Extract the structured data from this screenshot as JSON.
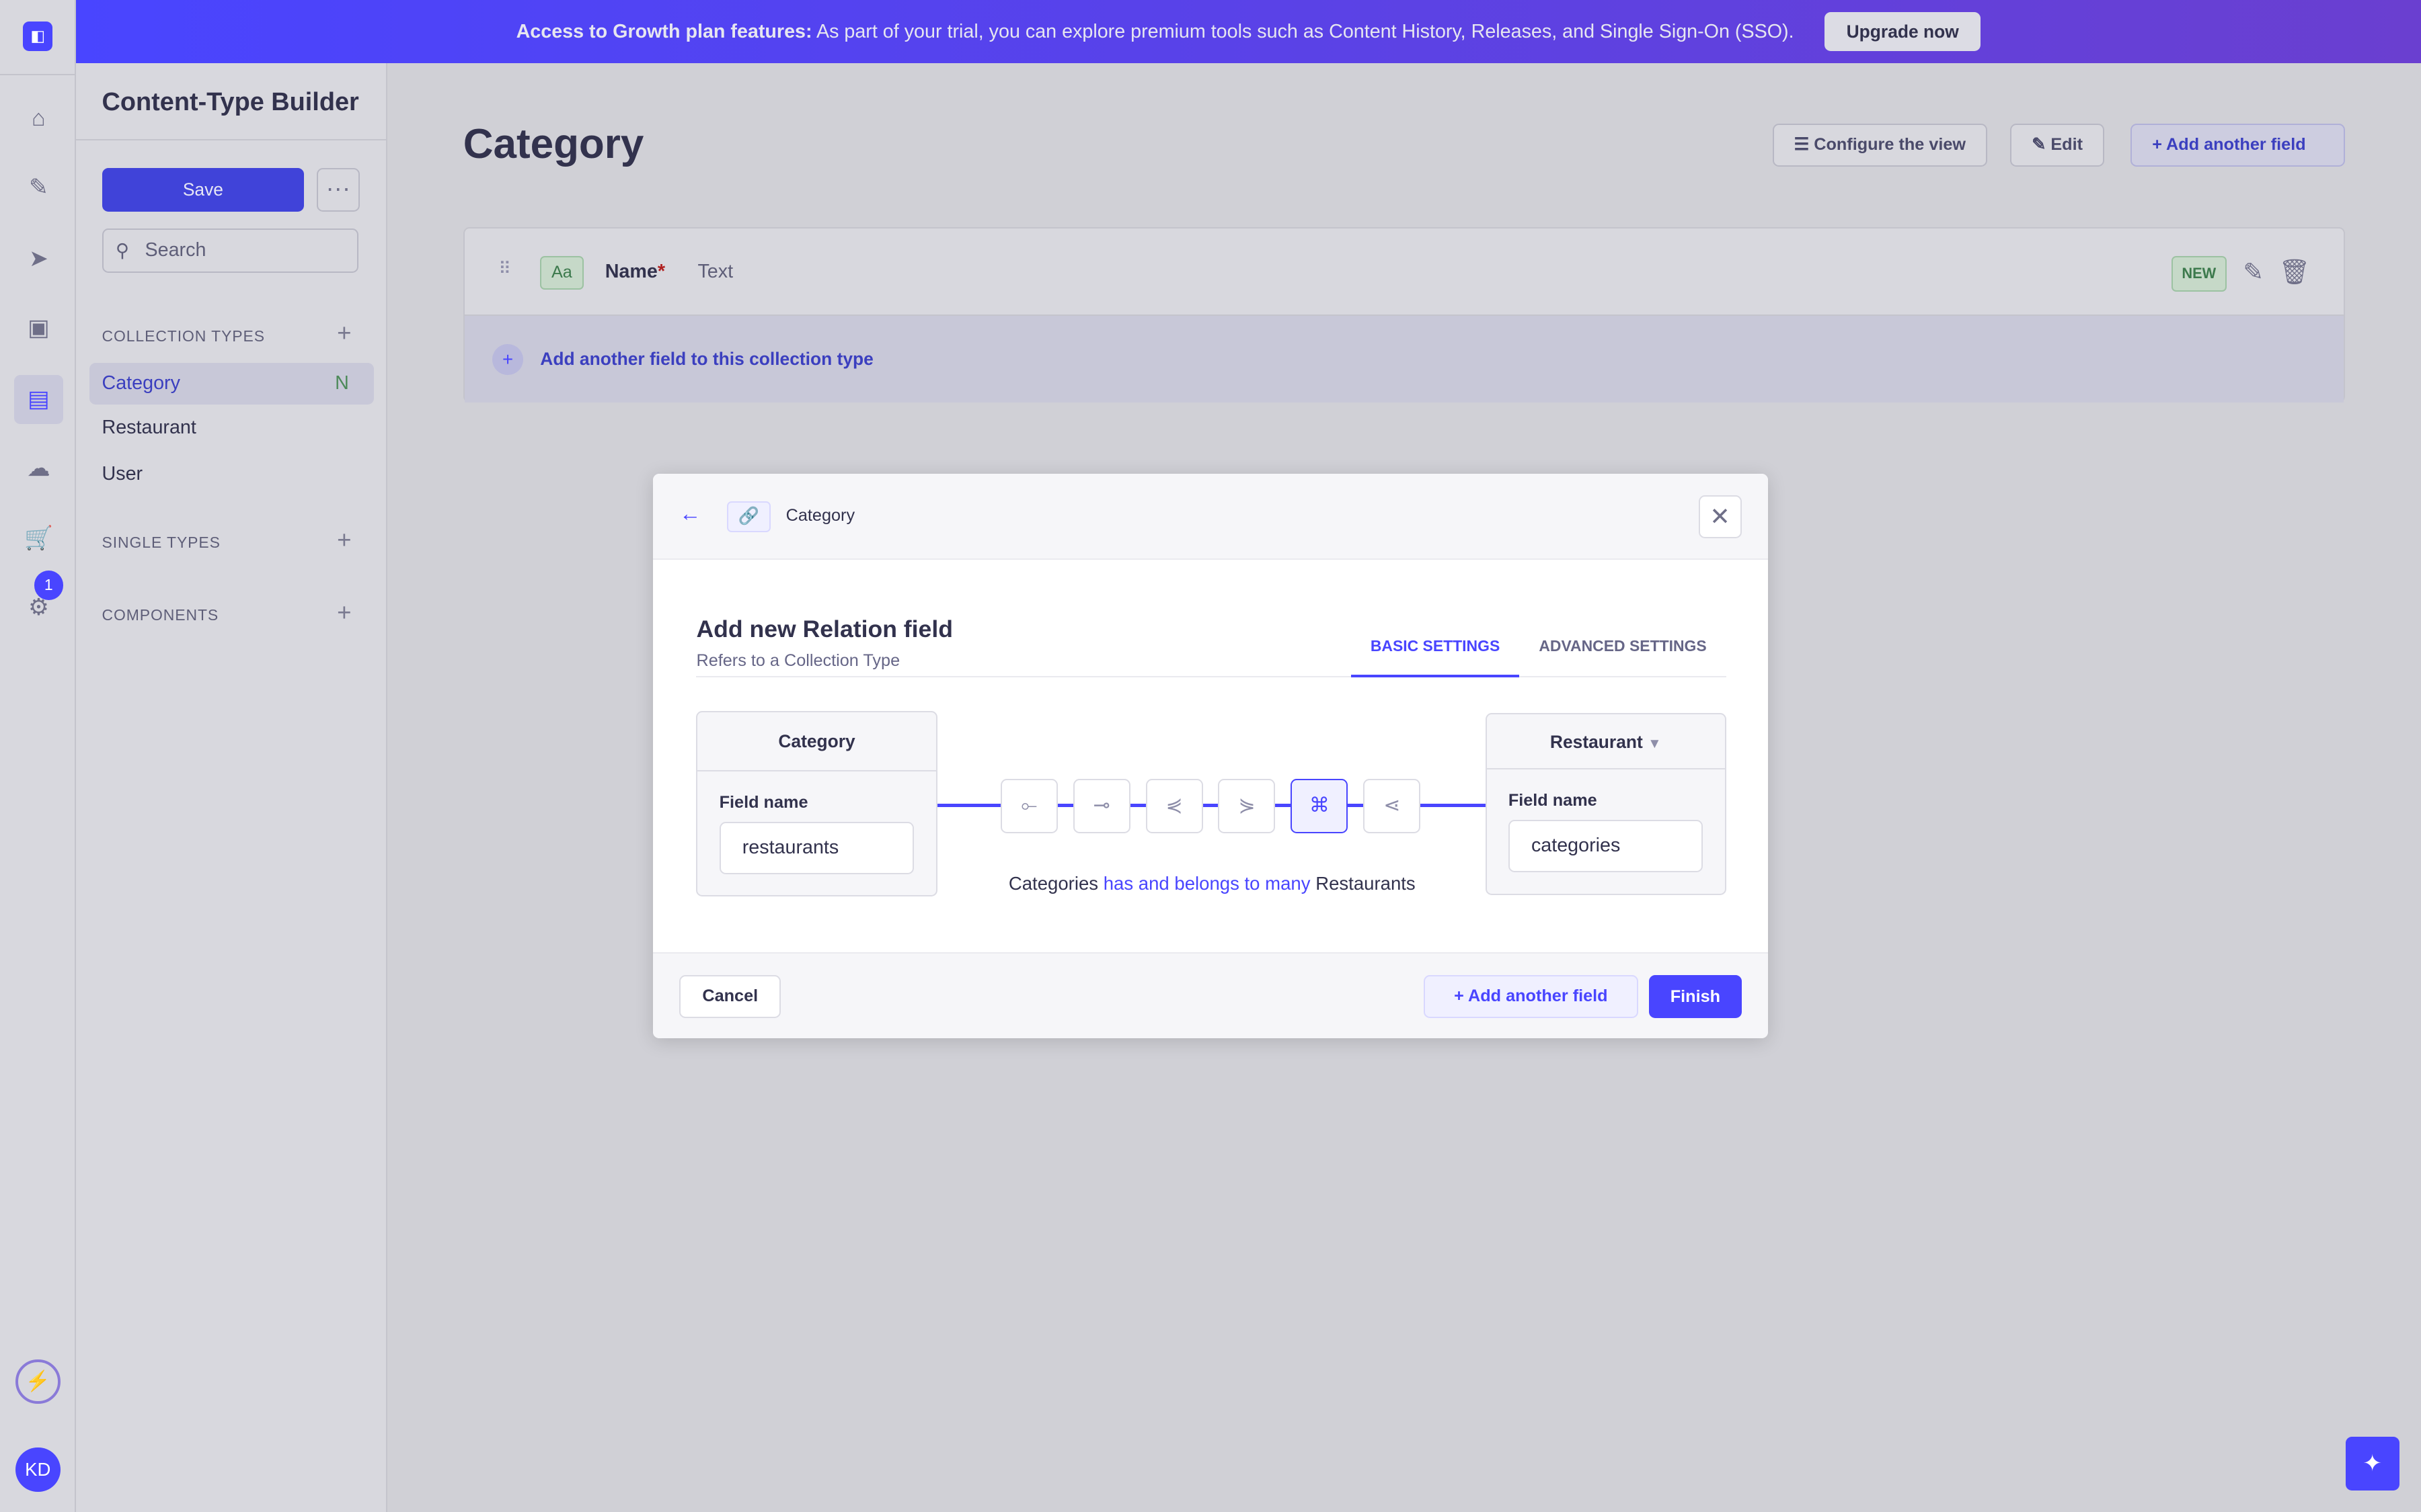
{
  "banner": {
    "bold": "Access to Growth plan features:",
    "text": "As part of your trial, you can explore premium tools such as Content History, Releases, and Single Sign-On (SSO).",
    "button": "Upgrade now"
  },
  "nav": {
    "badge": "1",
    "avatar": "KD"
  },
  "sidebar": {
    "title": "Content-Type Builder",
    "save": "Save",
    "more": "···",
    "search_placeholder": "Search",
    "collection_types": "COLLECTION TYPES",
    "single_types": "SINGLE TYPES",
    "components": "COMPONENTS",
    "items": [
      {
        "label": "Category",
        "badge": "N"
      },
      {
        "label": "Restaurant"
      },
      {
        "label": "User"
      }
    ]
  },
  "main": {
    "title": "Category",
    "configure": "Configure the view",
    "edit": "Edit",
    "add_field": "Add another field",
    "field": {
      "type_icon": "Aa",
      "name": "Name",
      "required": "*",
      "type": "Text",
      "badge": "NEW"
    },
    "add_to_collection": "Add another field to this collection type"
  },
  "modal": {
    "breadcrumb": "Category",
    "title": "Add new Relation field",
    "subtitle": "Refers to a Collection Type",
    "tabs": [
      "BASIC SETTINGS",
      "ADVANCED SETTINGS"
    ],
    "active_tab": "BASIC SETTINGS",
    "left": {
      "header": "Category",
      "label": "Field name",
      "value": "restaurants"
    },
    "right": {
      "header": "Restaurant",
      "label": "Field name",
      "value": "categories"
    },
    "relation_types": [
      "one-way",
      "one-to-one",
      "one-to-many",
      "many-to-one",
      "many-to-many",
      "many-way"
    ],
    "selected_relation": "many-to-many",
    "sentence": {
      "a": "Categories",
      "b": "has and belongs to many",
      "c": "Restaurants"
    },
    "cancel": "Cancel",
    "add_another": "Add another field",
    "finish": "Finish"
  },
  "colors": {
    "primary": "#4945ff",
    "success": "#328048"
  }
}
